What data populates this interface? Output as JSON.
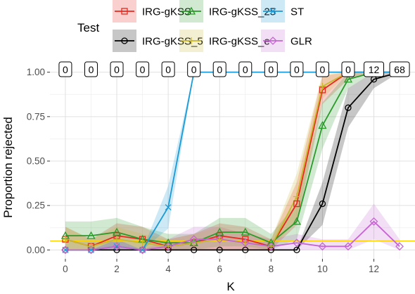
{
  "chart_data": {
    "type": "line",
    "xlabel": "K",
    "ylabel": "Proportion rejected",
    "xlim": [
      -0.6,
      13.6
    ],
    "ylim": [
      -0.05,
      1.05
    ],
    "x_ticks": [
      0,
      2,
      4,
      6,
      8,
      10,
      12
    ],
    "y_ticks": [
      0.0,
      0.25,
      0.5,
      0.75,
      1.0
    ],
    "y_tick_labels": [
      "0.00",
      "0.25",
      "0.50",
      "0.75",
      "1.00"
    ],
    "grid": true,
    "legend": {
      "title": "Test",
      "position": "top",
      "entries": [
        "IRG-gKSS",
        "IRG-gKSS_5",
        "IRG-gKSS_25",
        "IRG-gKSS_e",
        "ST",
        "GLR"
      ]
    },
    "reference_line": {
      "y": 0.05,
      "color": "#ffd700"
    },
    "counts": {
      "x": [
        0,
        1,
        2,
        3,
        4,
        5,
        6,
        7,
        8,
        9,
        10,
        11,
        12,
        13
      ],
      "labels": [
        "0",
        "0",
        "0",
        "0",
        "0",
        "0",
        "0",
        "0",
        "0",
        "0",
        "0",
        "0",
        "12",
        "68"
      ]
    },
    "series": [
      {
        "name": "IRG-gKSS",
        "color": "#e8281f",
        "marker": "square",
        "x": [
          0,
          1,
          2,
          3,
          4,
          5,
          6,
          7,
          8,
          9,
          10,
          11,
          12,
          13
        ],
        "values": [
          0.06,
          0.02,
          0.08,
          0.06,
          0.02,
          0.04,
          0.08,
          0.06,
          0.02,
          0.26,
          0.9,
          1.0,
          1.0,
          1.0
        ],
        "lower": [
          0.0,
          0.0,
          0.0,
          0.0,
          0.0,
          0.0,
          0.0,
          0.0,
          0.0,
          0.14,
          0.82,
          0.96,
          1.0,
          1.0
        ],
        "upper": [
          0.13,
          0.06,
          0.15,
          0.13,
          0.06,
          0.09,
          0.15,
          0.13,
          0.06,
          0.38,
          0.98,
          1.0,
          1.0,
          1.0
        ]
      },
      {
        "name": "IRG-gKSS_5",
        "color": "#000000",
        "marker": "circle",
        "x": [
          0,
          1,
          2,
          3,
          4,
          5,
          6,
          7,
          8,
          9,
          10,
          11,
          12,
          13
        ],
        "values": [
          0.0,
          0.0,
          0.0,
          0.0,
          0.0,
          0.0,
          0.0,
          0.0,
          0.0,
          0.0,
          0.26,
          0.8,
          0.96,
          1.0
        ],
        "lower": [
          0.0,
          0.0,
          0.0,
          0.0,
          0.0,
          0.0,
          0.0,
          0.0,
          0.0,
          0.0,
          0.14,
          0.69,
          0.91,
          1.0
        ],
        "upper": [
          0.0,
          0.0,
          0.0,
          0.0,
          0.0,
          0.0,
          0.0,
          0.0,
          0.0,
          0.0,
          0.38,
          0.91,
          1.0,
          1.0
        ]
      },
      {
        "name": "IRG-gKSS_25",
        "color": "#2a9a2a",
        "marker": "triangle",
        "x": [
          0,
          1,
          2,
          3,
          4,
          5,
          6,
          7,
          8,
          9,
          10,
          11,
          12,
          13
        ],
        "values": [
          0.08,
          0.08,
          0.1,
          0.06,
          0.04,
          0.04,
          0.1,
          0.1,
          0.04,
          0.16,
          0.7,
          0.96,
          1.0,
          1.0
        ],
        "lower": [
          0.0,
          0.0,
          0.02,
          0.0,
          0.0,
          0.0,
          0.02,
          0.02,
          0.0,
          0.06,
          0.57,
          0.91,
          1.0,
          1.0
        ],
        "upper": [
          0.16,
          0.16,
          0.18,
          0.13,
          0.09,
          0.09,
          0.18,
          0.18,
          0.09,
          0.26,
          0.83,
          1.0,
          1.0,
          1.0
        ]
      },
      {
        "name": "IRG-gKSS_e",
        "color": "#c8b830",
        "marker": "plus",
        "x": [
          0,
          1,
          2,
          3,
          4,
          5,
          6,
          7,
          8,
          9,
          10,
          11,
          12,
          13
        ],
        "values": [
          0.06,
          0.02,
          0.06,
          0.04,
          0.02,
          0.04,
          0.06,
          0.04,
          0.02,
          0.3,
          0.92,
          1.0,
          1.0,
          1.0
        ],
        "lower": [
          0.0,
          0.0,
          0.0,
          0.0,
          0.0,
          0.0,
          0.0,
          0.0,
          0.0,
          0.17,
          0.85,
          1.0,
          1.0,
          1.0
        ],
        "upper": [
          0.13,
          0.06,
          0.13,
          0.09,
          0.06,
          0.09,
          0.13,
          0.09,
          0.06,
          0.43,
          0.99,
          1.0,
          1.0,
          1.0
        ]
      },
      {
        "name": "ST",
        "color": "#1a9ad6",
        "marker": "x",
        "x": [
          0,
          1,
          2,
          3,
          4,
          5,
          6,
          7,
          8,
          9,
          10,
          11,
          12,
          13
        ],
        "values": [
          0.0,
          0.0,
          0.02,
          0.0,
          0.24,
          1.0,
          1.0,
          1.0,
          1.0,
          1.0,
          1.0,
          1.0,
          1.0,
          1.0
        ],
        "lower": [
          0.0,
          0.0,
          0.0,
          0.0,
          0.12,
          1.0,
          1.0,
          1.0,
          1.0,
          1.0,
          1.0,
          1.0,
          1.0,
          1.0
        ],
        "upper": [
          0.0,
          0.0,
          0.06,
          0.0,
          0.36,
          1.0,
          1.0,
          1.0,
          1.0,
          1.0,
          1.0,
          1.0,
          1.0,
          1.0
        ]
      },
      {
        "name": "GLR",
        "color": "#c467d0",
        "marker": "diamond",
        "x": [
          0,
          1,
          2,
          3,
          4,
          5,
          6,
          7,
          8,
          9,
          10,
          11,
          12,
          13
        ],
        "values": [
          0.0,
          0.0,
          0.02,
          0.0,
          0.02,
          0.06,
          0.06,
          0.04,
          0.02,
          0.04,
          0.02,
          0.02,
          0.16,
          0.02
        ],
        "lower": [
          0.0,
          0.0,
          0.0,
          0.0,
          0.0,
          0.0,
          0.0,
          0.0,
          0.0,
          0.0,
          0.0,
          0.0,
          0.06,
          0.0
        ],
        "upper": [
          0.0,
          0.0,
          0.06,
          0.0,
          0.06,
          0.13,
          0.13,
          0.09,
          0.06,
          0.09,
          0.06,
          0.06,
          0.26,
          0.06
        ]
      }
    ]
  }
}
